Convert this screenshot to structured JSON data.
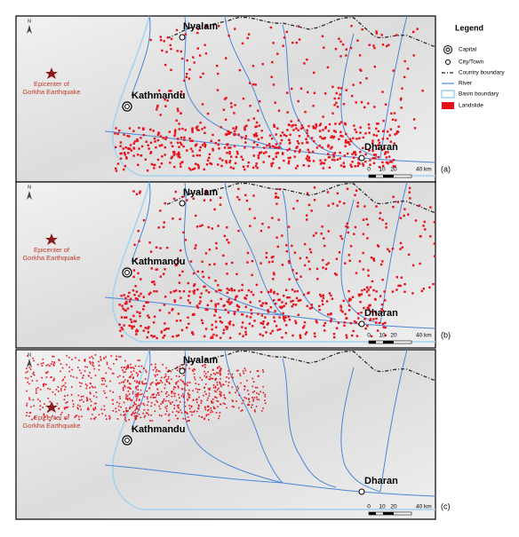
{
  "legend": {
    "title": "Legend",
    "items": [
      "Capital",
      "City/Town",
      "Country boundary",
      "River",
      "Basin boundary",
      "Landslide"
    ]
  },
  "north": "N",
  "panels": [
    {
      "label": "(a)",
      "nyalam": "Nyalam",
      "kathmandu": "Kathmandu",
      "dharan": "Dharan",
      "epicenter": [
        "Epicenter of",
        "Gorkha Earthquake"
      ],
      "scale": [
        "0",
        "10",
        "20",
        "40 km"
      ]
    },
    {
      "label": "(b)",
      "nyalam": "Nyalam",
      "kathmandu": "Kathmandu",
      "dharan": "Dharan",
      "epicenter": [
        "Epicenter of",
        "Gorkha Earthquake"
      ],
      "scale": [
        "0",
        "10",
        "20",
        "40 km"
      ]
    },
    {
      "label": "(c)",
      "nyalam": "Nyalam",
      "kathmandu": "Kathmandu",
      "dharan": "Dharan",
      "epicenter": [
        "Epicenter of",
        "Gorkha Earthquake"
      ],
      "scale": [
        "0",
        "10",
        "20",
        "40 km"
      ]
    }
  ]
}
